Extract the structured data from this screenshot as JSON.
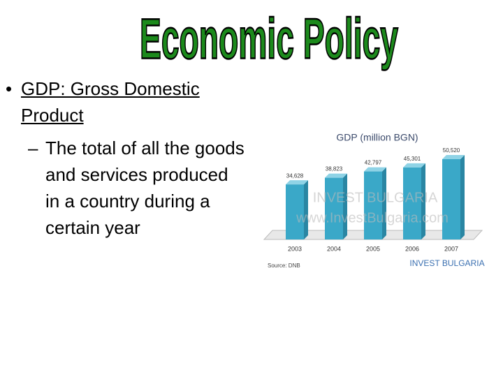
{
  "title": "Economic Policy",
  "bullets": [
    {
      "text": "GDP: Gross Domestic Product",
      "sub": [
        "The total of all the goods and services produced in a country during a certain year"
      ]
    }
  ],
  "chart_data": {
    "type": "bar",
    "title": "GDP (million BGN)",
    "categories": [
      "2003",
      "2004",
      "2005",
      "2006",
      "2007"
    ],
    "values": [
      34628,
      38823,
      42797,
      45301,
      50520
    ],
    "value_labels": [
      "34,628",
      "38,823",
      "42,797",
      "45,301",
      "50,520"
    ],
    "color": "#3aa8c8",
    "annotations": [
      "INVEST BULGARIA",
      "www.InvestBulgaria.com",
      "Source: DNB",
      "INVEST BULGARIA"
    ]
  }
}
